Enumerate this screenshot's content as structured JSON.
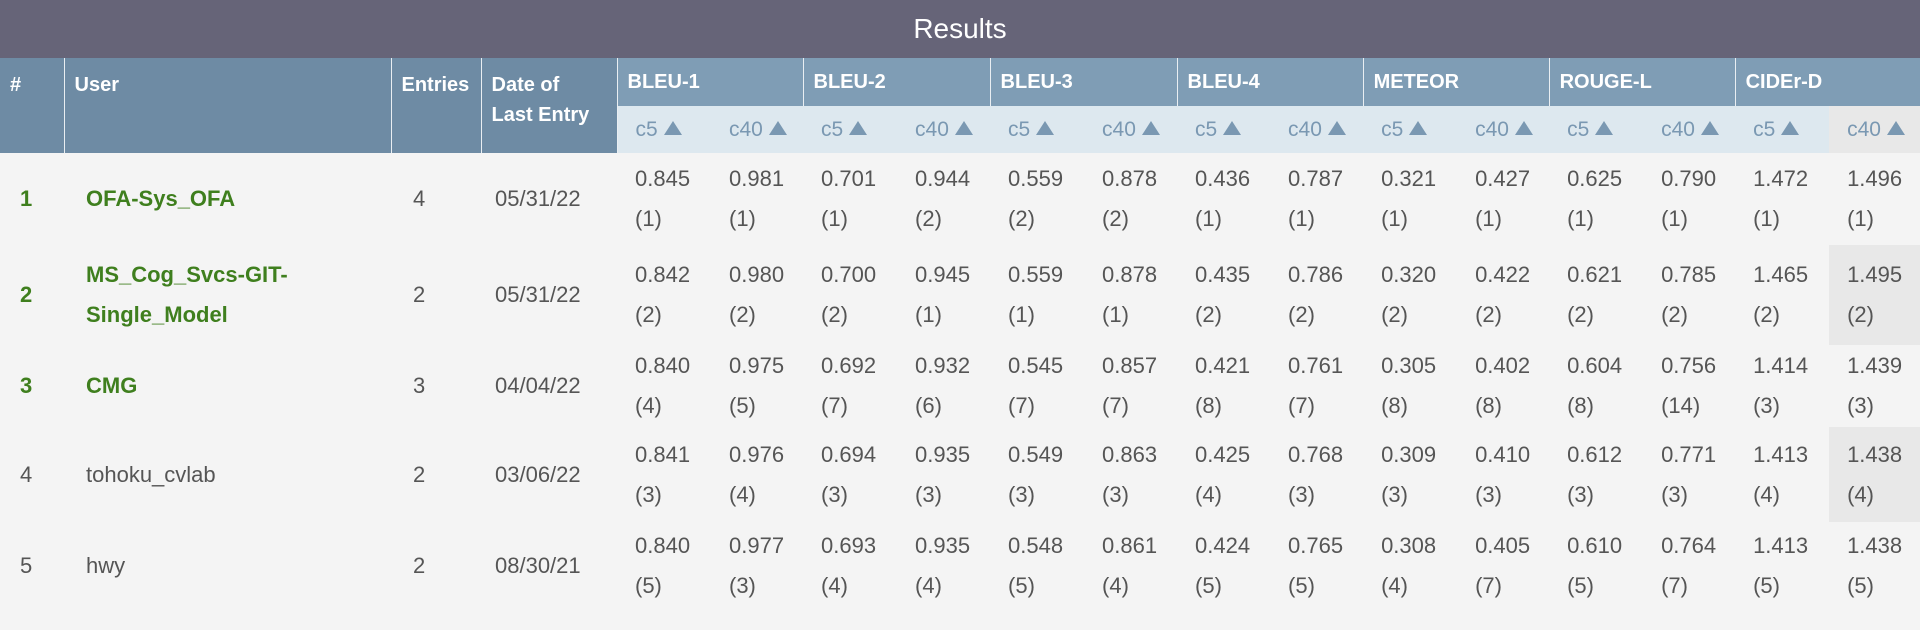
{
  "title": "Results",
  "headers": {
    "rank": "#",
    "user": "User",
    "entries": "Entries",
    "date_line1": "Date of",
    "date_line2": "Last Entry",
    "metrics": [
      "BLEU-1",
      "BLEU-2",
      "BLEU-3",
      "BLEU-4",
      "METEOR",
      "ROUGE-L",
      "CIDEr-D"
    ],
    "sub": [
      "c5",
      "c40"
    ]
  },
  "rows": [
    {
      "rank": "1",
      "user_line1": "OFA-Sys_OFA",
      "user_line2": "",
      "entries": "4",
      "date": "05/31/22",
      "top": true,
      "scores": [
        [
          "0.845",
          "(1)"
        ],
        [
          "0.981",
          "(1)"
        ],
        [
          "0.701",
          "(1)"
        ],
        [
          "0.944",
          "(2)"
        ],
        [
          "0.559",
          "(2)"
        ],
        [
          "0.878",
          "(2)"
        ],
        [
          "0.436",
          "(1)"
        ],
        [
          "0.787",
          "(1)"
        ],
        [
          "0.321",
          "(1)"
        ],
        [
          "0.427",
          "(1)"
        ],
        [
          "0.625",
          "(1)"
        ],
        [
          "0.790",
          "(1)"
        ],
        [
          "1.472",
          "(1)"
        ],
        [
          "1.496",
          "(1)"
        ]
      ]
    },
    {
      "rank": "2",
      "user_line1": "MS_Cog_Svcs-GIT-",
      "user_line2": "Single_Model",
      "entries": "2",
      "date": "05/31/22",
      "top": true,
      "scores": [
        [
          "0.842",
          "(2)"
        ],
        [
          "0.980",
          "(2)"
        ],
        [
          "0.700",
          "(2)"
        ],
        [
          "0.945",
          "(1)"
        ],
        [
          "0.559",
          "(1)"
        ],
        [
          "0.878",
          "(1)"
        ],
        [
          "0.435",
          "(2)"
        ],
        [
          "0.786",
          "(2)"
        ],
        [
          "0.320",
          "(2)"
        ],
        [
          "0.422",
          "(2)"
        ],
        [
          "0.621",
          "(2)"
        ],
        [
          "0.785",
          "(2)"
        ],
        [
          "1.465",
          "(2)"
        ],
        [
          "1.495",
          "(2)"
        ]
      ]
    },
    {
      "rank": "3",
      "user_line1": "CMG",
      "user_line2": "",
      "entries": "3",
      "date": "04/04/22",
      "top": true,
      "scores": [
        [
          "0.840",
          "(4)"
        ],
        [
          "0.975",
          "(5)"
        ],
        [
          "0.692",
          "(7)"
        ],
        [
          "0.932",
          "(6)"
        ],
        [
          "0.545",
          "(7)"
        ],
        [
          "0.857",
          "(7)"
        ],
        [
          "0.421",
          "(8)"
        ],
        [
          "0.761",
          "(7)"
        ],
        [
          "0.305",
          "(8)"
        ],
        [
          "0.402",
          "(8)"
        ],
        [
          "0.604",
          "(8)"
        ],
        [
          "0.756",
          "(14)"
        ],
        [
          "1.414",
          "(3)"
        ],
        [
          "1.439",
          "(3)"
        ]
      ]
    },
    {
      "rank": "4",
      "user_line1": "tohoku_cvlab",
      "user_line2": "",
      "entries": "2",
      "date": "03/06/22",
      "top": false,
      "scores": [
        [
          "0.841",
          "(3)"
        ],
        [
          "0.976",
          "(4)"
        ],
        [
          "0.694",
          "(3)"
        ],
        [
          "0.935",
          "(3)"
        ],
        [
          "0.549",
          "(3)"
        ],
        [
          "0.863",
          "(3)"
        ],
        [
          "0.425",
          "(4)"
        ],
        [
          "0.768",
          "(3)"
        ],
        [
          "0.309",
          "(3)"
        ],
        [
          "0.410",
          "(3)"
        ],
        [
          "0.612",
          "(3)"
        ],
        [
          "0.771",
          "(3)"
        ],
        [
          "1.413",
          "(4)"
        ],
        [
          "1.438",
          "(4)"
        ]
      ]
    },
    {
      "rank": "5",
      "user_line1": "hwy",
      "user_line2": "",
      "entries": "2",
      "date": "08/30/21",
      "top": false,
      "scores": [
        [
          "0.840",
          "(5)"
        ],
        [
          "0.977",
          "(3)"
        ],
        [
          "0.693",
          "(4)"
        ],
        [
          "0.935",
          "(4)"
        ],
        [
          "0.548",
          "(5)"
        ],
        [
          "0.861",
          "(4)"
        ],
        [
          "0.424",
          "(5)"
        ],
        [
          "0.765",
          "(5)"
        ],
        [
          "0.308",
          "(4)"
        ],
        [
          "0.405",
          "(7)"
        ],
        [
          "0.610",
          "(5)"
        ],
        [
          "0.764",
          "(7)"
        ],
        [
          "1.413",
          "(5)"
        ],
        [
          "1.438",
          "(5)"
        ]
      ]
    }
  ],
  "colors": {
    "title_bar": "#666478",
    "header": "#6e8ba4",
    "metric_header": "#7f9db5",
    "sub_header": "#dde8ef",
    "top_rank_green": "#3f7f1e"
  }
}
